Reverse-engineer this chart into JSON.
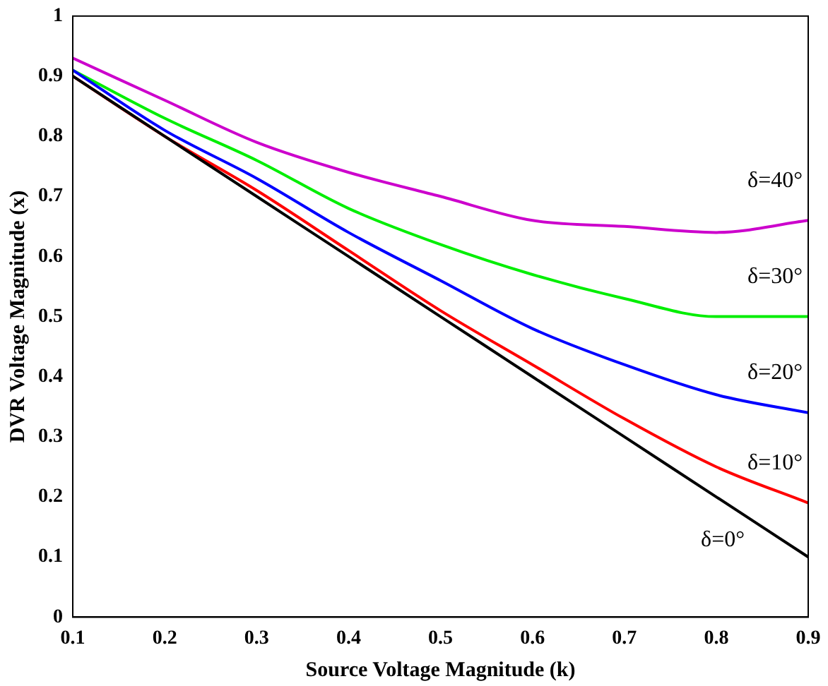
{
  "chart_data": {
    "type": "line",
    "xlabel": "Source Voltage Magnitude (k)",
    "ylabel": "DVR Voltage Magnitude (x)",
    "x": [
      0.1,
      0.2,
      0.3,
      0.4,
      0.5,
      0.6,
      0.7,
      0.8,
      0.9
    ],
    "series": [
      {
        "color": "#000000",
        "values": [
          0.9,
          0.8,
          0.7,
          0.6,
          0.5,
          0.4,
          0.3,
          0.2,
          0.1
        ]
      },
      {
        "color": "#ff0000",
        "values": [
          0.9,
          0.8,
          0.71,
          0.61,
          0.51,
          0.42,
          0.33,
          0.25,
          0.19
        ]
      },
      {
        "color": "#0000ff",
        "values": [
          0.91,
          0.81,
          0.73,
          0.64,
          0.56,
          0.48,
          0.42,
          0.37,
          0.34
        ]
      },
      {
        "color": "#00ee00",
        "values": [
          0.91,
          0.83,
          0.76,
          0.68,
          0.62,
          0.57,
          0.53,
          0.5,
          0.5
        ]
      },
      {
        "color": "#cc00cc",
        "values": [
          0.93,
          0.86,
          0.79,
          0.74,
          0.7,
          0.66,
          0.65,
          0.64,
          0.66
        ]
      }
    ],
    "xlim": [
      0.1,
      0.9
    ],
    "xticks": [
      0.1,
      0.2,
      0.3,
      0.4,
      0.5,
      0.6,
      0.7,
      0.8,
      0.9
    ],
    "ylim": [
      0,
      1
    ],
    "yticks": [
      0,
      0.1,
      0.2,
      0.3,
      0.4,
      0.5,
      0.6,
      0.7,
      0.8,
      0.9,
      1
    ],
    "annotations": [
      "δ=0°",
      "δ=10°",
      "δ=20°",
      "δ=30°",
      "δ=40°"
    ],
    "grid": false,
    "legend": false,
    "marker": "none",
    "line_style": "solid"
  }
}
